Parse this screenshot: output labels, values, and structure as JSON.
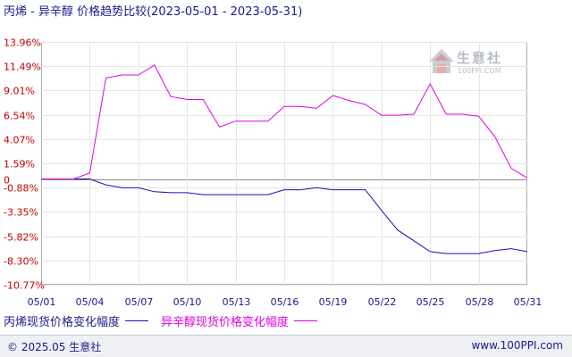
{
  "title": "丙烯 - 异辛醇 价格趋势比较(2023-05-01 - 2023-05-31)",
  "watermark": {
    "text": "生意社",
    "url": "100PPI.COM"
  },
  "legend": {
    "items": [
      {
        "label": "丙烯现货价格变化幅度",
        "color": "#1010c0"
      },
      {
        "label": "异辛醇现货价格变化幅度",
        "color": "#e000e0"
      }
    ]
  },
  "footer": {
    "copyright": "© 2025.05 生意社",
    "url": "www.100PPI.com"
  },
  "chart_data": {
    "type": "line",
    "title": "丙烯 - 异辛醇 价格趋势比较(2023-05-01 - 2023-05-31)",
    "x": [
      "05/01",
      "05/02",
      "05/03",
      "05/04",
      "05/05",
      "05/06",
      "05/07",
      "05/08",
      "05/09",
      "05/10",
      "05/11",
      "05/12",
      "05/13",
      "05/14",
      "05/15",
      "05/16",
      "05/17",
      "05/18",
      "05/19",
      "05/20",
      "05/21",
      "05/22",
      "05/23",
      "05/24",
      "05/25",
      "05/26",
      "05/27",
      "05/28",
      "05/29",
      "05/30",
      "05/31"
    ],
    "xticks": [
      "05/01",
      "05/04",
      "05/07",
      "05/10",
      "05/13",
      "05/16",
      "05/19",
      "05/22",
      "05/25",
      "05/28",
      "05/31"
    ],
    "yticks": [
      "13.96%",
      "11.49%",
      "9.01%",
      "6.54%",
      "4.07%",
      "1.59%",
      "0",
      "-0.88%",
      "-3.35%",
      "-5.82%",
      "-8.30%",
      "-10.77%"
    ],
    "ytick_values": [
      13.96,
      11.49,
      9.01,
      6.54,
      4.07,
      1.59,
      0,
      -0.88,
      -3.35,
      -5.82,
      -8.3,
      -10.77
    ],
    "ylim": [
      -10.77,
      13.96
    ],
    "grid": true,
    "legend_position": "bottom",
    "series": [
      {
        "name": "丙烯现货价格变化幅度",
        "color": "#1010c0",
        "values": [
          0,
          0,
          0,
          0,
          -0.6,
          -0.9,
          -0.9,
          -1.3,
          -1.4,
          -1.4,
          -1.6,
          -1.6,
          -1.6,
          -1.6,
          -1.6,
          -1.1,
          -1.1,
          -0.9,
          -1.1,
          -1.1,
          -1.1,
          -3.2,
          -5.2,
          -6.3,
          -7.4,
          -7.6,
          -7.6,
          -7.6,
          -7.3,
          -7.1,
          -7.4
        ]
      },
      {
        "name": "异辛醇现货价格变化幅度",
        "color": "#e000e0",
        "values": [
          0,
          0,
          0,
          0.6,
          10.3,
          10.6,
          10.6,
          11.6,
          8.4,
          8.1,
          8.1,
          5.3,
          5.9,
          5.9,
          5.9,
          7.4,
          7.4,
          7.2,
          8.5,
          8.0,
          7.6,
          6.5,
          6.5,
          6.6,
          9.7,
          6.6,
          6.6,
          6.4,
          4.3,
          1.1,
          0.1
        ]
      }
    ]
  }
}
